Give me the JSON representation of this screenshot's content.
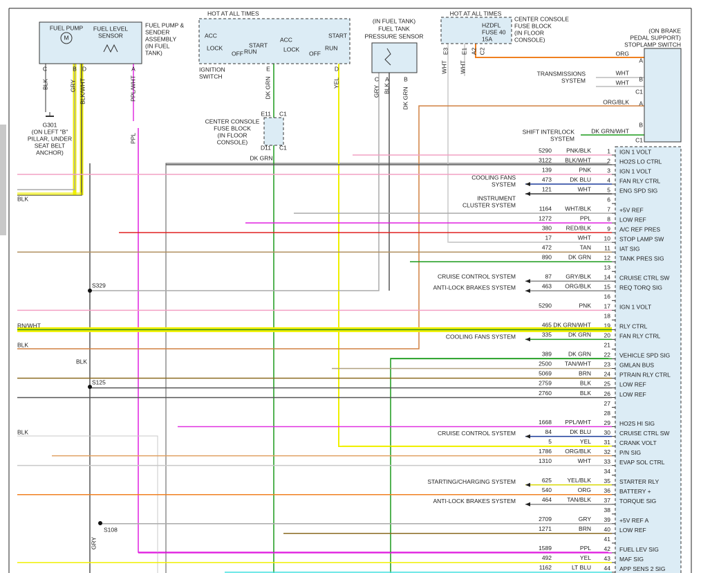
{
  "fuel_pump_assembly": {
    "fuel_pump": "FUEL PUMP",
    "motor": "M",
    "sensor": [
      "FUEL LEVEL",
      "SENSOR"
    ],
    "name": [
      "FUEL PUMP &",
      "SENDER",
      "ASSEMBLY",
      "(IN FUEL",
      "TANK)"
    ],
    "pins": [
      "C",
      "B",
      "D",
      "A"
    ],
    "wires": [
      "BLK",
      "GRY",
      "BLK/WHT",
      "PPL/WHT",
      "PPL"
    ]
  },
  "ground": {
    "id": "G301",
    "note": [
      "(ON LEFT \"B\"",
      "PILLAR, UNDER",
      "SEAT BELT",
      "ANCHOR)"
    ]
  },
  "ignition_switch": {
    "hot": "HOT AT ALL TIMES",
    "positions": [
      "ACC",
      "LOCK",
      "OFF",
      "START",
      "RUN",
      "ACC",
      "LOCK",
      "OFF",
      "START",
      "RUN"
    ],
    "name": [
      "IGNITION",
      "SWITCH"
    ],
    "pins": [
      "E",
      "D"
    ],
    "wires": [
      "DK GRN",
      "YEL"
    ]
  },
  "center_console_block": {
    "pins": [
      "E11",
      "C1",
      "D11",
      "C1"
    ],
    "name": [
      "CENTER CONSOLE",
      "FUSE BLOCK",
      "(IN FLOOR",
      "CONSOLE)"
    ],
    "wire": "DK GRN"
  },
  "tank_sensor": {
    "name": [
      "(IN FUEL TANK)",
      "FUEL TANK",
      "PRESSURE SENSOR"
    ],
    "pins": [
      "C",
      "A",
      "B"
    ],
    "wires": [
      "GRY",
      "BLK",
      "DK GRN"
    ]
  },
  "fuse_block": {
    "hot": "HOT AT ALL TIMES",
    "fuse": [
      "HZDFL",
      "FUSE 40",
      "15A"
    ],
    "name": [
      "CENTER CONSOLE",
      "FUSE BLOCK",
      "(IN FLOOR",
      "CONSOLE)"
    ],
    "pins": [
      "E3",
      "E1",
      "A2",
      "C2"
    ],
    "wires": [
      "WHT",
      "WHT"
    ]
  },
  "stoplamp_switch": {
    "name": [
      "(ON BRAKE",
      "PEDAL SUPPORT)",
      "STOPLAMP SWITCH"
    ],
    "pins": [
      "A",
      "B",
      "C1",
      "A",
      "B",
      "C1"
    ],
    "wires": [
      "ORG",
      "WHT",
      "WHT",
      "ORG/BLK",
      "DK GRN/WHT"
    ]
  },
  "systems": [
    [
      "TRANSMISSIONS",
      "SYSTEM"
    ],
    [
      "SHIFT INTERLOCK",
      "SYSTEM"
    ],
    [
      "COOLING FANS",
      "SYSTEM"
    ],
    [
      "INSTRUMENT",
      "CLUSTER SYSTEM"
    ],
    [
      "CRUISE CONTROL SYSTEM"
    ],
    [
      "ANTI-LOCK BRAKES SYSTEM"
    ],
    [
      "COOLING FANS SYSTEM"
    ],
    [
      "CRUISE CONTROL SYSTEM"
    ],
    [
      "STARTING/CHARGING SYSTEM"
    ],
    [
      "ANTI-LOCK BRAKES SYSTEM"
    ]
  ],
  "splices": [
    "S329",
    "S125",
    "S108"
  ],
  "left_labels": [
    "BLK",
    "RN/WHT",
    "BLK",
    "BLK",
    "BLK",
    "GRY"
  ],
  "connector": {
    "rows": [
      {
        "pin": "1",
        "circuit": "5290",
        "color": "PNK/BLK",
        "func": "IGN 1 VOLT",
        "wire": "#f2a0c4"
      },
      {
        "pin": "2",
        "circuit": "3122",
        "color": "BLK/WHT",
        "func": "HO2S LO CTRL",
        "wire": "#555555"
      },
      {
        "pin": "3",
        "circuit": "139",
        "color": "PNK",
        "func": "IGN 1 VOLT",
        "wire": "#f2a0c4"
      },
      {
        "pin": "4",
        "circuit": "473",
        "color": "DK BLU",
        "func": "FAN RLY CTRL",
        "wire": "#1a3a9a"
      },
      {
        "pin": "5",
        "circuit": "121",
        "color": "WHT",
        "func": "ENG SPD SIG",
        "wire": "#333333"
      },
      {
        "pin": "6"
      },
      {
        "pin": "7",
        "circuit": "1164",
        "color": "WHT/BLK",
        "func": "+5V REF",
        "wire": "#aaaaaa"
      },
      {
        "pin": "8",
        "circuit": "1272",
        "color": "PPL",
        "func": "LOW REF",
        "wire": "#e020e0"
      },
      {
        "pin": "9",
        "circuit": "380",
        "color": "RED/BLK",
        "func": "A/C REF PRES",
        "wire": "#e02020"
      },
      {
        "pin": "10",
        "circuit": "17",
        "color": "WHT",
        "func": "STOP LAMP SW",
        "wire": "#c8c8c8"
      },
      {
        "pin": "11",
        "circuit": "472",
        "color": "TAN",
        "func": "IAT SIG",
        "wire": "#b09060"
      },
      {
        "pin": "12",
        "circuit": "890",
        "color": "DK GRN",
        "func": "TANK PRES SIG",
        "wire": "#1a9a1a"
      },
      {
        "pin": "13"
      },
      {
        "pin": "14",
        "circuit": "87",
        "color": "GRY/BLK",
        "func": "CRUISE CTRL SW",
        "wire": "#888888"
      },
      {
        "pin": "15",
        "circuit": "463",
        "color": "ORG/BLK",
        "func": "REQ TORQ SIG",
        "wire": "#888888"
      },
      {
        "pin": "16"
      },
      {
        "pin": "17",
        "circuit": "5290",
        "color": "PNK",
        "func": "IGN 1 VOLT",
        "wire": "#f2a0c4"
      },
      {
        "pin": "18"
      },
      {
        "pin": "19",
        "circuit": "465",
        "color": "DK GRN/WHT",
        "func": "RLY CTRL",
        "wire": "#2a8a2a"
      },
      {
        "pin": "20",
        "circuit": "335",
        "color": "DK GRN",
        "func": "FAN RLY CTRL",
        "wire": "#1a9a1a"
      },
      {
        "pin": "21"
      },
      {
        "pin": "22",
        "circuit": "389",
        "color": "DK GRN",
        "func": "VEHICLE SPD SIG",
        "wire": "#1a9a1a"
      },
      {
        "pin": "23",
        "circuit": "2500",
        "color": "TAN/WHT",
        "func": "GMLAN BUS",
        "wire": "#b0a080"
      },
      {
        "pin": "24",
        "circuit": "5069",
        "color": "BRN",
        "func": "PTRAIN RLY CTRL",
        "wire": "#8a6a20"
      },
      {
        "pin": "25",
        "circuit": "2759",
        "color": "BLK",
        "func": "LOW REF",
        "wire": "#555555"
      },
      {
        "pin": "26",
        "circuit": "2760",
        "color": "BLK",
        "func": "LOW REF",
        "wire": "#555555"
      },
      {
        "pin": "27"
      },
      {
        "pin": "28"
      },
      {
        "pin": "29",
        "circuit": "1668",
        "color": "PPL/WHT",
        "func": "HO2S HI SIG",
        "wire": "#e030e0"
      },
      {
        "pin": "30",
        "circuit": "84",
        "color": "DK BLU",
        "func": "CRUISE CTRL SW",
        "wire": "#1a3a9a"
      },
      {
        "pin": "31",
        "circuit": "5",
        "color": "YEL",
        "func": "CRANK VOLT",
        "wire": "#f0f000"
      },
      {
        "pin": "32",
        "circuit": "1786",
        "color": "ORG/BLK",
        "func": "P/N SIG",
        "wire": "#e0a060"
      },
      {
        "pin": "33",
        "circuit": "1310",
        "color": "WHT",
        "func": "EVAP SOL CTRL",
        "wire": "#c8c8c8"
      },
      {
        "pin": "34"
      },
      {
        "pin": "35",
        "circuit": "625",
        "color": "YEL/BLK",
        "func": "STARTER RLY",
        "wire": "#d8d800"
      },
      {
        "pin": "36",
        "circuit": "540",
        "color": "ORG",
        "func": "BATTERY +",
        "wire": "#f08020"
      },
      {
        "pin": "37",
        "circuit": "464",
        "color": "TAN/BLK",
        "func": "TORQUE SIG",
        "wire": "#888888"
      },
      {
        "pin": "38"
      },
      {
        "pin": "39",
        "circuit": "2709",
        "color": "GRY",
        "func": "+5V REF A",
        "wire": "#aaaaaa"
      },
      {
        "pin": "40",
        "circuit": "1271",
        "color": "BRN",
        "func": "LOW REF",
        "wire": "#8a6a20"
      },
      {
        "pin": "41"
      },
      {
        "pin": "42",
        "circuit": "1589",
        "color": "PPL",
        "func": "FUEL LEV SIG",
        "wire": "#e020e0"
      },
      {
        "pin": "43",
        "circuit": "492",
        "color": "YEL",
        "func": "MAF SIG",
        "wire": "#f0f000"
      },
      {
        "pin": "44",
        "circuit": "1162",
        "color": "LT BLU",
        "func": "APP SENS 2 SIG",
        "wire": "#40e0e0"
      }
    ]
  }
}
